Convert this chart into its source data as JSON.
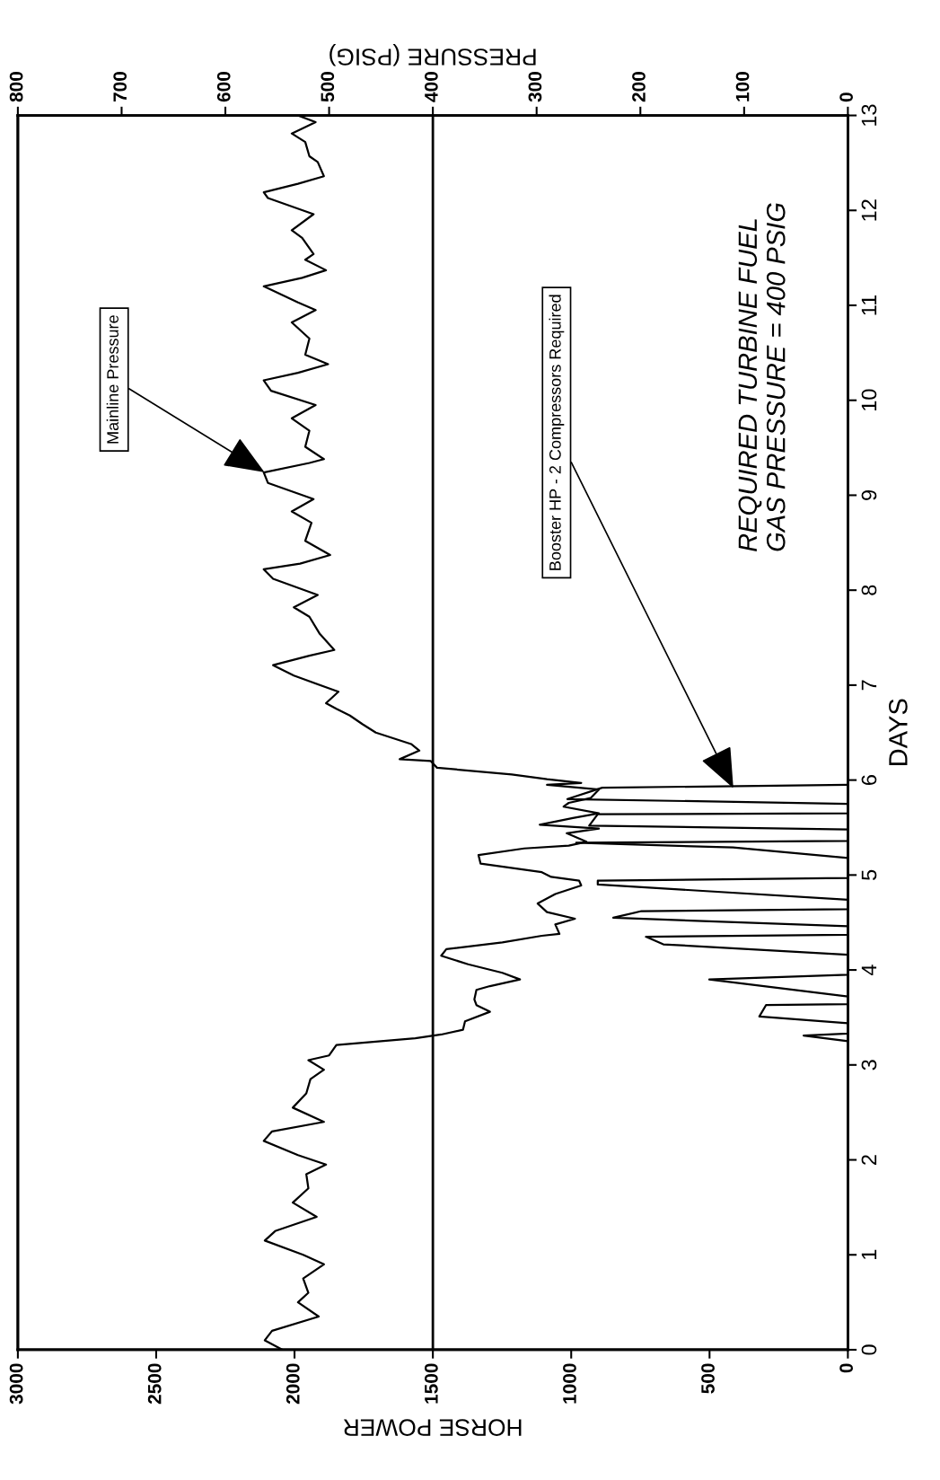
{
  "chart_data": {
    "type": "line",
    "xlabel": "HORSE POWER",
    "ylabel": "DAYS",
    "x2label": "PRESSURE (PSIG)",
    "xlim": [
      3000,
      0
    ],
    "xticks": [
      0,
      500,
      1000,
      1500,
      2000,
      2500,
      3000
    ],
    "x2lim": [
      800,
      0
    ],
    "x2ticks": [
      0,
      100,
      200,
      300,
      400,
      500,
      600,
      700,
      800
    ],
    "ylim": [
      0,
      13
    ],
    "yticks": [
      0,
      1,
      2,
      3,
      4,
      5,
      6,
      7,
      8,
      9,
      10,
      11,
      12,
      13
    ],
    "series": [
      {
        "name": "Mainline Pressure",
        "color": "#000000",
        "axis": "x2",
        "values": [
          0.0,
          0.1,
          0.2,
          0.35,
          0.5,
          0.6,
          0.75,
          0.9,
          1.0,
          1.15,
          1.25,
          1.4,
          1.55,
          1.7,
          1.85,
          1.95,
          2.05,
          2.2,
          2.3,
          2.4,
          2.55,
          2.7,
          2.85,
          2.95,
          3.05,
          3.1,
          3.21,
          3.28,
          3.32,
          3.37,
          3.46,
          3.56,
          3.63,
          3.69,
          3.79,
          3.83,
          3.9,
          3.97,
          4.06,
          4.15,
          4.22,
          4.29,
          4.36,
          4.38,
          4.48,
          4.54,
          4.61,
          4.7,
          4.8,
          4.89,
          4.94,
          4.98,
          5.03,
          5.12,
          5.21,
          5.28,
          5.31,
          5.35,
          5.44,
          5.49,
          5.53,
          5.6,
          5.65,
          5.72,
          5.76,
          5.81,
          5.9,
          5.95,
          5.97,
          6.01,
          6.06,
          6.13,
          6.2,
          6.22,
          6.31,
          6.38,
          6.5,
          6.59,
          6.68,
          6.75,
          6.81,
          6.93,
          7.1,
          7.21,
          7.31,
          7.37,
          7.54,
          7.72,
          7.82,
          7.95,
          8.12,
          8.22,
          8.28,
          8.37,
          8.52,
          8.71,
          8.83,
          8.96,
          9.13,
          9.24,
          9.34,
          9.38,
          9.51,
          9.68,
          9.81,
          9.95,
          10.1,
          10.21,
          10.29,
          10.38,
          10.48,
          10.65,
          10.82,
          10.95,
          11.03,
          11.2,
          11.29,
          11.37,
          11.48,
          11.54,
          11.71,
          11.79,
          11.96,
          12.13,
          12.19,
          12.28,
          12.36,
          12.51,
          12.57,
          12.72,
          12.81,
          12.93,
          13.0
        ],
        "x": [
          545,
          562,
          555,
          510,
          530,
          520,
          525,
          505,
          525,
          562,
          552,
          512,
          535,
          520,
          522,
          503,
          530,
          563,
          555,
          505,
          535,
          522,
          518,
          505,
          520,
          500,
          493,
          417,
          392,
          371,
          369,
          345,
          358,
          360,
          358,
          345,
          316,
          333,
          366,
          392,
          387,
          333,
          295,
          278,
          282,
          263,
          290,
          299,
          282,
          257,
          259,
          286,
          295,
          354,
          356,
          312,
          269,
          252,
          271,
          240,
          297,
          265,
          240,
          274,
          269,
          248,
          240,
          290,
          257,
          290,
          324,
          396,
          402,
          432,
          413,
          421,
          455,
          468,
          480,
          493,
          503,
          491,
          534,
          554,
          519,
          495,
          509,
          519,
          534,
          511,
          554,
          563,
          528,
          499,
          523,
          517,
          536,
          515,
          559,
          563,
          519,
          505,
          523,
          519,
          536,
          513,
          556,
          563,
          530,
          501,
          523,
          519,
          536,
          513,
          530,
          563,
          526,
          503,
          523,
          515,
          526,
          536,
          515,
          559,
          563,
          530,
          505,
          511,
          519,
          523,
          536,
          513,
          530
        ]
      },
      {
        "name": "Booster HP - 2 Compressors Required",
        "color": "#000000",
        "values": [
          3.25,
          3.31,
          3.33,
          3.44,
          3.51,
          3.63,
          3.64,
          3.72,
          3.9,
          3.95,
          4.16,
          4.27,
          4.35,
          4.37,
          4.46,
          4.55,
          4.62,
          4.64,
          4.74,
          4.9,
          4.94,
          4.97,
          5.18,
          5.29,
          5.34,
          5.36,
          5.48,
          5.52,
          5.64,
          5.65,
          5.75,
          5.8,
          5.92,
          5.95
        ],
        "x": [
          0,
          160,
          0,
          0,
          320,
          296,
          0,
          0,
          501,
          0,
          0,
          667,
          730,
          0,
          0,
          848,
          746,
          0,
          0,
          904,
          904,
          0,
          0,
          415,
          982,
          0,
          0,
          935,
          904,
          0,
          0,
          1014,
          888,
          0
        ]
      }
    ],
    "ref_lines": [
      {
        "axis": "x2",
        "value": 400
      }
    ],
    "annotations": [
      "REQUIRED TURBINE FUEL\nGAS PRESSURE = 400 PSIG"
    ]
  }
}
